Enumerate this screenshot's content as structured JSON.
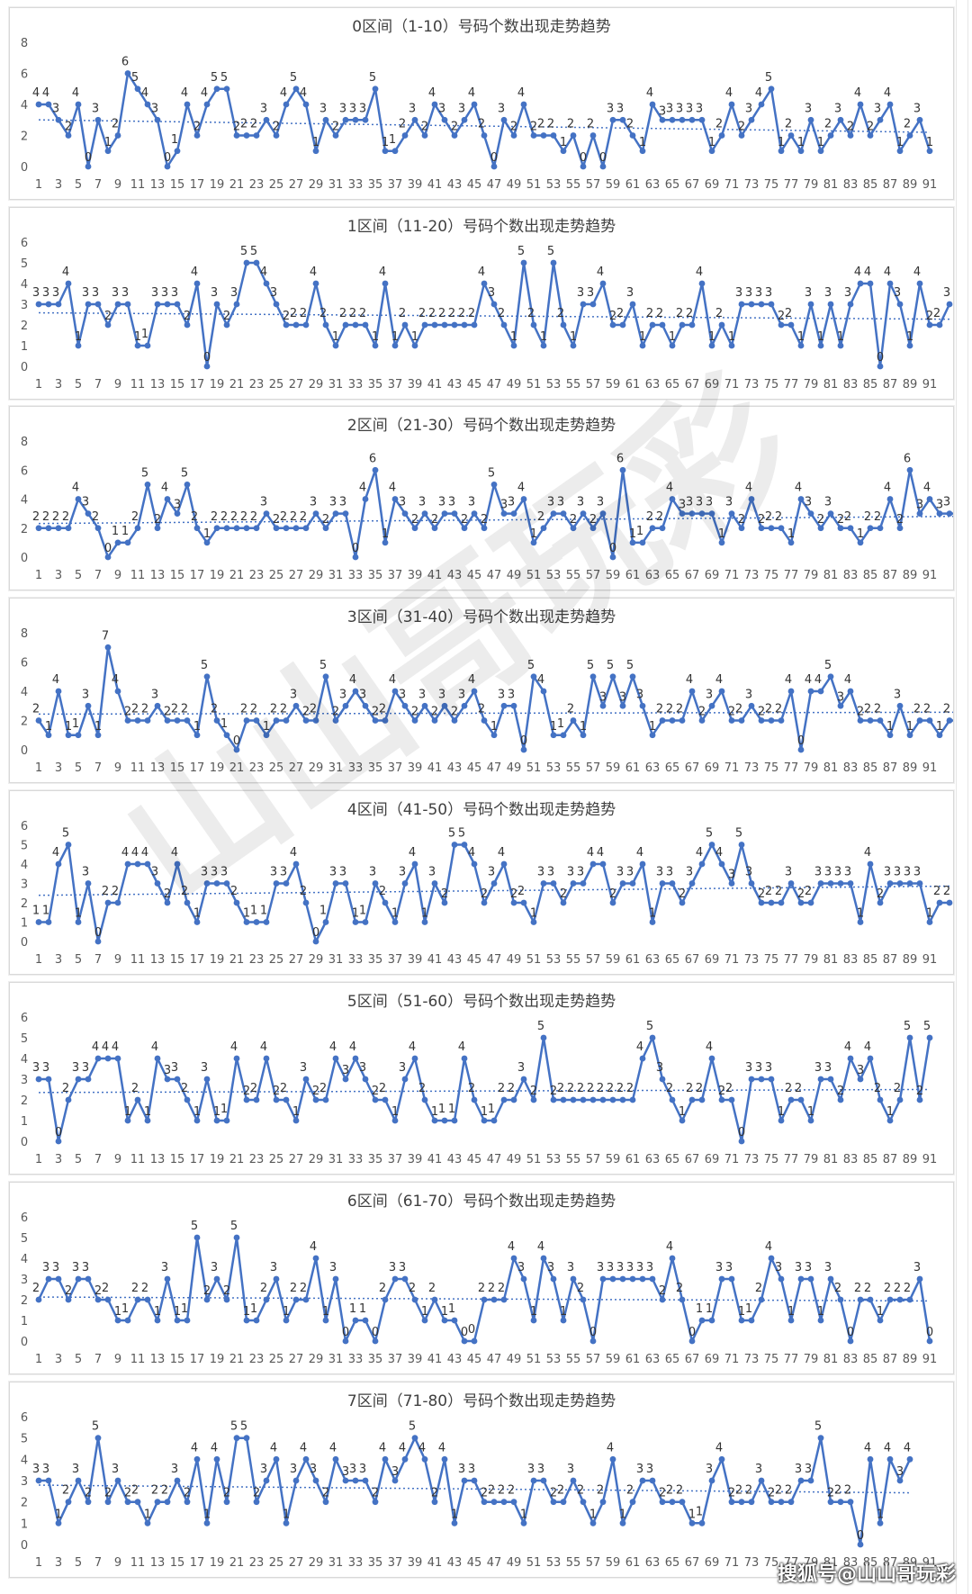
{
  "watermark_text": "山山哥玩彩",
  "credit": "搜狐号@山山哥玩彩",
  "colors": {
    "line": "#4472c4",
    "trend": "#4472c4",
    "label": "#333333",
    "axis": "#595959"
  },
  "chart_data": [
    {
      "type": "line",
      "title": "0区间（1-10）号码个数出现走势趋势",
      "ylim": [
        0,
        8
      ],
      "yticks": [
        0,
        2,
        4,
        6,
        8
      ],
      "x_tick_labels": [
        1,
        3,
        5,
        7,
        9,
        11,
        13,
        15,
        17,
        19,
        21,
        23,
        25,
        27,
        29,
        31,
        33,
        35,
        37,
        39,
        41,
        43,
        45,
        47,
        49,
        51,
        53,
        55,
        57,
        59,
        61,
        63,
        65,
        67,
        69,
        71,
        73,
        75,
        77,
        79,
        81,
        83,
        85,
        87,
        89,
        91
      ],
      "trendline": true,
      "values": [
        4,
        4,
        3,
        2,
        4,
        0,
        3,
        1,
        2,
        6,
        5,
        4,
        3,
        0,
        1,
        4,
        2,
        4,
        5,
        5,
        2,
        2,
        2,
        3,
        2,
        4,
        5,
        4,
        1,
        3,
        2,
        3,
        3,
        3,
        5,
        1,
        1,
        2,
        3,
        2,
        4,
        3,
        2,
        3,
        4,
        2,
        0,
        3,
        2,
        4,
        2,
        2,
        2,
        1,
        2,
        0,
        2,
        0,
        3,
        3,
        2,
        1,
        4,
        3,
        3,
        3,
        3,
        3,
        1,
        2,
        4,
        2,
        3,
        4,
        5,
        1,
        2,
        1,
        3,
        1,
        2,
        3,
        2,
        4,
        2,
        3,
        4,
        1,
        2,
        3,
        1
      ]
    },
    {
      "type": "line",
      "title": "1区间（11-20）号码个数出现走势趋势",
      "ylim": [
        0,
        6
      ],
      "yticks": [
        0,
        1,
        2,
        3,
        4,
        5,
        6
      ],
      "x_tick_labels": [
        1,
        3,
        5,
        7,
        9,
        11,
        13,
        15,
        17,
        19,
        21,
        23,
        25,
        27,
        29,
        31,
        33,
        35,
        37,
        39,
        41,
        43,
        45,
        47,
        49,
        51,
        53,
        55,
        57,
        59,
        61,
        63,
        65,
        67,
        69,
        71,
        73,
        75,
        77,
        79,
        81,
        83,
        85,
        87,
        89,
        91
      ],
      "trendline": true,
      "values": [
        3,
        3,
        3,
        4,
        1,
        3,
        3,
        2,
        3,
        3,
        1,
        1,
        3,
        3,
        3,
        2,
        4,
        0,
        3,
        2,
        3,
        5,
        5,
        4,
        3,
        2,
        2,
        2,
        4,
        2,
        1,
        2,
        2,
        2,
        1,
        4,
        1,
        2,
        1,
        2,
        2,
        2,
        2,
        2,
        2,
        4,
        3,
        2,
        1,
        5,
        2,
        1,
        5,
        2,
        1,
        3,
        3,
        4,
        2,
        2,
        3,
        1,
        2,
        2,
        1,
        2,
        2,
        4,
        1,
        2,
        1,
        3,
        3,
        3,
        3,
        2,
        2,
        1,
        3,
        1,
        3,
        1,
        3,
        4,
        4,
        0,
        4,
        3,
        1,
        4,
        2,
        2,
        3
      ]
    },
    {
      "type": "line",
      "title": "2区间（21-30）号码个数出现走势趋势",
      "ylim": [
        0,
        8
      ],
      "yticks": [
        0,
        2,
        4,
        6,
        8
      ],
      "x_tick_labels": [
        1,
        3,
        5,
        7,
        9,
        11,
        13,
        15,
        17,
        19,
        21,
        23,
        25,
        27,
        29,
        31,
        33,
        35,
        37,
        39,
        41,
        43,
        45,
        47,
        49,
        51,
        53,
        55,
        57,
        59,
        61,
        63,
        65,
        67,
        69,
        71,
        73,
        75,
        77,
        79,
        81,
        83,
        85,
        87,
        89,
        91
      ],
      "trendline": true,
      "values": [
        2,
        2,
        2,
        2,
        4,
        3,
        2,
        0,
        1,
        1,
        2,
        5,
        2,
        4,
        3,
        5,
        2,
        1,
        2,
        2,
        2,
        2,
        2,
        3,
        2,
        2,
        2,
        2,
        3,
        2,
        3,
        3,
        0,
        4,
        6,
        1,
        4,
        3,
        2,
        3,
        2,
        3,
        3,
        2,
        3,
        2,
        5,
        3,
        3,
        4,
        1,
        2,
        3,
        3,
        2,
        3,
        2,
        3,
        0,
        6,
        1,
        1,
        2,
        2,
        4,
        3,
        3,
        3,
        3,
        1,
        3,
        2,
        4,
        2,
        2,
        2,
        1,
        4,
        3,
        2,
        3,
        2,
        2,
        1,
        2,
        2,
        4,
        2,
        6,
        3,
        4,
        3,
        3,
        3
      ]
    },
    {
      "type": "line",
      "title": "3区间（31-40）号码个数出现走势趋势",
      "ylim": [
        0,
        8
      ],
      "yticks": [
        0,
        2,
        4,
        6,
        8
      ],
      "x_tick_labels": [
        1,
        3,
        5,
        7,
        9,
        11,
        13,
        15,
        17,
        19,
        21,
        23,
        25,
        27,
        29,
        31,
        33,
        35,
        37,
        39,
        41,
        43,
        45,
        47,
        49,
        51,
        53,
        55,
        57,
        59,
        61,
        63,
        65,
        67,
        69,
        71,
        73,
        75,
        77,
        79,
        81,
        83,
        85,
        87,
        89,
        91
      ],
      "trendline": true,
      "values": [
        2,
        1,
        4,
        1,
        1,
        3,
        1,
        7,
        4,
        2,
        2,
        2,
        3,
        2,
        2,
        2,
        1,
        5,
        2,
        1,
        0,
        2,
        2,
        1,
        2,
        2,
        3,
        2,
        2,
        5,
        2,
        3,
        4,
        3,
        2,
        2,
        4,
        3,
        2,
        3,
        2,
        3,
        2,
        3,
        4,
        2,
        1,
        3,
        3,
        0,
        5,
        4,
        1,
        1,
        2,
        1,
        5,
        3,
        5,
        3,
        5,
        3,
        1,
        2,
        2,
        2,
        4,
        2,
        3,
        4,
        2,
        2,
        3,
        2,
        2,
        2,
        4,
        0,
        4,
        4,
        5,
        3,
        4,
        2,
        2,
        2,
        1,
        3,
        1,
        2,
        2,
        1,
        2,
        2
      ]
    },
    {
      "type": "line",
      "title": "4区间（41-50）号码个数出现走势趋势",
      "ylim": [
        0,
        6
      ],
      "yticks": [
        0,
        1,
        2,
        3,
        4,
        5,
        6
      ],
      "x_tick_labels": [
        1,
        3,
        5,
        7,
        9,
        11,
        13,
        15,
        17,
        19,
        21,
        23,
        25,
        27,
        29,
        31,
        33,
        35,
        37,
        39,
        41,
        43,
        45,
        47,
        49,
        51,
        53,
        55,
        57,
        59,
        61,
        63,
        65,
        67,
        69,
        71,
        73,
        75,
        77,
        79,
        81,
        83,
        85,
        87,
        89,
        91
      ],
      "trendline": true,
      "values": [
        1,
        1,
        4,
        5,
        1,
        3,
        0,
        2,
        2,
        4,
        4,
        4,
        3,
        2,
        4,
        2,
        1,
        3,
        3,
        3,
        2,
        1,
        1,
        1,
        3,
        3,
        4,
        2,
        0,
        1,
        3,
        3,
        1,
        1,
        3,
        2,
        1,
        3,
        4,
        1,
        3,
        2,
        5,
        5,
        4,
        2,
        3,
        4,
        2,
        2,
        1,
        3,
        3,
        2,
        3,
        3,
        4,
        4,
        2,
        3,
        3,
        4,
        1,
        3,
        3,
        2,
        3,
        4,
        5,
        4,
        3,
        5,
        3,
        2,
        2,
        2,
        3,
        2,
        2,
        3,
        3,
        3,
        3,
        1,
        4,
        2,
        3,
        3,
        3,
        3,
        1,
        2,
        2
      ]
    },
    {
      "type": "line",
      "title": "5区间（51-60）号码个数出现走势趋势",
      "ylim": [
        0,
        6
      ],
      "yticks": [
        0,
        1,
        2,
        3,
        4,
        5,
        6
      ],
      "x_tick_labels": [
        1,
        3,
        5,
        7,
        9,
        11,
        13,
        15,
        17,
        19,
        21,
        23,
        25,
        27,
        29,
        31,
        33,
        35,
        37,
        39,
        41,
        43,
        45,
        47,
        49,
        51,
        53,
        55,
        57,
        59,
        61,
        63,
        65,
        67,
        69,
        71,
        73,
        75,
        77,
        79,
        81,
        83,
        85,
        87,
        89,
        91
      ],
      "trendline": true,
      "values": [
        3,
        3,
        0,
        2,
        3,
        3,
        4,
        4,
        4,
        1,
        2,
        1,
        4,
        3,
        3,
        2,
        1,
        3,
        1,
        1,
        4,
        2,
        2,
        4,
        2,
        2,
        1,
        3,
        2,
        2,
        4,
        3,
        4,
        3,
        2,
        2,
        1,
        3,
        4,
        2,
        1,
        1,
        1,
        4,
        2,
        1,
        1,
        2,
        2,
        3,
        2,
        5,
        2,
        2,
        2,
        2,
        2,
        2,
        2,
        2,
        2,
        4,
        5,
        3,
        2,
        1,
        2,
        2,
        4,
        2,
        2,
        0,
        3,
        3,
        3,
        1,
        2,
        2,
        1,
        3,
        3,
        2,
        4,
        3,
        4,
        2,
        1,
        2,
        5,
        2,
        5
      ]
    },
    {
      "type": "line",
      "title": "6区间（61-70）号码个数出现走势趋势",
      "ylim": [
        0,
        6
      ],
      "yticks": [
        0,
        1,
        2,
        3,
        4,
        5,
        6
      ],
      "x_tick_labels": [
        1,
        3,
        5,
        7,
        9,
        11,
        13,
        15,
        17,
        19,
        21,
        23,
        25,
        27,
        29,
        31,
        33,
        35,
        37,
        39,
        41,
        43,
        45,
        47,
        49,
        51,
        53,
        55,
        57,
        59,
        61,
        63,
        65,
        67,
        69,
        71,
        73,
        75,
        77,
        79,
        81,
        83,
        85,
        87,
        89,
        91
      ],
      "trendline": true,
      "values": [
        2,
        3,
        3,
        2,
        3,
        3,
        2,
        2,
        1,
        1,
        2,
        2,
        1,
        3,
        1,
        1,
        5,
        2,
        3,
        2,
        5,
        1,
        1,
        2,
        3,
        1,
        2,
        2,
        4,
        1,
        3,
        0,
        1,
        1,
        0,
        2,
        3,
        3,
        2,
        1,
        2,
        1,
        1,
        0,
        0,
        2,
        2,
        2,
        4,
        3,
        1,
        4,
        3,
        1,
        3,
        2,
        0,
        3,
        3,
        3,
        3,
        3,
        3,
        2,
        4,
        2,
        0,
        1,
        1,
        3,
        3,
        1,
        1,
        2,
        4,
        3,
        1,
        3,
        3,
        1,
        3,
        2,
        0,
        2,
        2,
        1,
        2,
        2,
        2,
        3,
        0
      ]
    },
    {
      "type": "line",
      "title": "7区间（71-80）号码个数出现走势趋势",
      "ylim": [
        0,
        6
      ],
      "yticks": [
        0,
        1,
        2,
        3,
        4,
        5,
        6
      ],
      "x_tick_labels": [
        1,
        3,
        5,
        7,
        9,
        11,
        13,
        15,
        17,
        19,
        21,
        23,
        25,
        27,
        29,
        31,
        33,
        35,
        37,
        39,
        41,
        43,
        45,
        47,
        49,
        51,
        53,
        55,
        57,
        59,
        61,
        63,
        65,
        67,
        69,
        71,
        73,
        75,
        77,
        79,
        81,
        83,
        85,
        87,
        89,
        91
      ],
      "trendline": true,
      "values": [
        3,
        3,
        1,
        2,
        3,
        2,
        5,
        2,
        3,
        2,
        2,
        1,
        2,
        2,
        3,
        2,
        4,
        1,
        4,
        2,
        5,
        5,
        2,
        3,
        4,
        1,
        3,
        4,
        3,
        2,
        4,
        3,
        3,
        3,
        2,
        4,
        3,
        4,
        5,
        4,
        2,
        4,
        1,
        3,
        3,
        2,
        2,
        2,
        2,
        1,
        3,
        3,
        2,
        2,
        3,
        2,
        1,
        2,
        4,
        1,
        2,
        3,
        3,
        2,
        2,
        2,
        1,
        1,
        3,
        4,
        2,
        2,
        2,
        3,
        2,
        2,
        2,
        3,
        3,
        5,
        2,
        2,
        2,
        0,
        4,
        1,
        4,
        3,
        4
      ]
    }
  ]
}
